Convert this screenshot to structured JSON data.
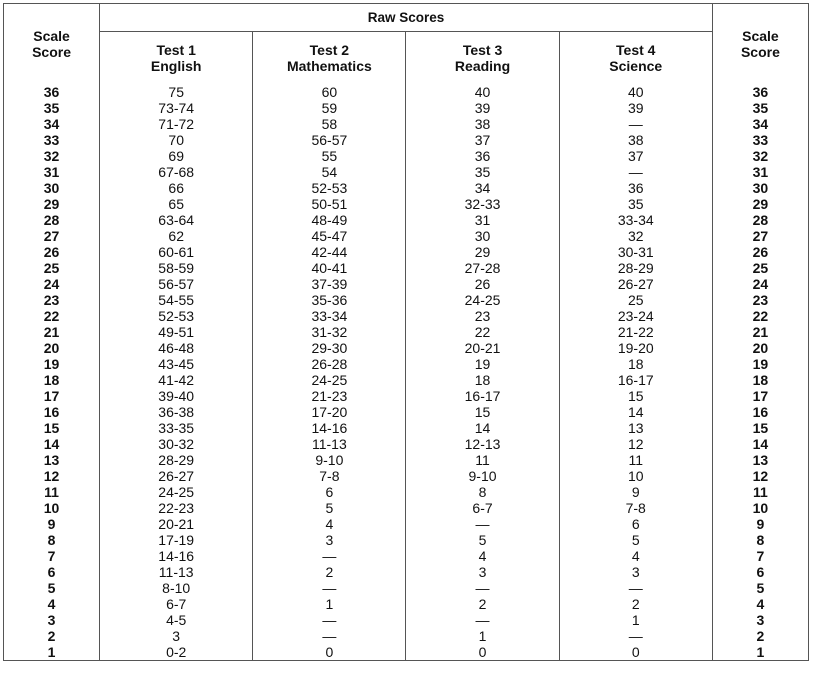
{
  "table": {
    "raw_scores_header": "Raw Scores",
    "left_scale_header": [
      "Scale",
      "Score"
    ],
    "right_scale_header": [
      "Scale",
      "Score"
    ],
    "columns": [
      {
        "line1": "Test 1",
        "line2": "English"
      },
      {
        "line1": "Test 2",
        "line2": "Mathematics"
      },
      {
        "line1": "Test 3",
        "line2": "Reading"
      },
      {
        "line1": "Test 4",
        "line2": "Science"
      }
    ],
    "scale_scores": [
      "36",
      "35",
      "34",
      "33",
      "32",
      "31",
      "30",
      "29",
      "28",
      "27",
      "26",
      "25",
      "24",
      "23",
      "22",
      "21",
      "20",
      "19",
      "18",
      "17",
      "16",
      "15",
      "14",
      "13",
      "12",
      "11",
      "10",
      "9",
      "8",
      "7",
      "6",
      "5",
      "4",
      "3",
      "2",
      "1"
    ],
    "english": [
      "75",
      "73-74",
      "71-72",
      "70",
      "69",
      "67-68",
      "66",
      "65",
      "63-64",
      "62",
      "60-61",
      "58-59",
      "56-57",
      "54-55",
      "52-53",
      "49-51",
      "46-48",
      "43-45",
      "41-42",
      "39-40",
      "36-38",
      "33-35",
      "30-32",
      "28-29",
      "26-27",
      "24-25",
      "22-23",
      "20-21",
      "17-19",
      "14-16",
      "11-13",
      "8-10",
      "6-7",
      "4-5",
      "3",
      "0-2"
    ],
    "mathematics": [
      "60",
      "59",
      "58",
      "56-57",
      "55",
      "54",
      "52-53",
      "50-51",
      "48-49",
      "45-47",
      "42-44",
      "40-41",
      "37-39",
      "35-36",
      "33-34",
      "31-32",
      "29-30",
      "26-28",
      "24-25",
      "21-23",
      "17-20",
      "14-16",
      "11-13",
      "9-10",
      "7-8",
      "6",
      "5",
      "4",
      "3",
      "—",
      "2",
      "—",
      "1",
      "—",
      "—",
      "0"
    ],
    "reading": [
      "40",
      "39",
      "38",
      "37",
      "36",
      "35",
      "34",
      "32-33",
      "31",
      "30",
      "29",
      "27-28",
      "26",
      "24-25",
      "23",
      "22",
      "20-21",
      "19",
      "18",
      "16-17",
      "15",
      "14",
      "12-13",
      "11",
      "9-10",
      "8",
      "6-7",
      "—",
      "5",
      "4",
      "3",
      "—",
      "2",
      "—",
      "1",
      "0"
    ],
    "science": [
      "40",
      "39",
      "—",
      "38",
      "37",
      "—",
      "36",
      "35",
      "33-34",
      "32",
      "30-31",
      "28-29",
      "26-27",
      "25",
      "23-24",
      "21-22",
      "19-20",
      "18",
      "16-17",
      "15",
      "14",
      "13",
      "12",
      "11",
      "10",
      "9",
      "7-8",
      "6",
      "5",
      "4",
      "3",
      "—",
      "2",
      "1",
      "—",
      "0"
    ]
  }
}
